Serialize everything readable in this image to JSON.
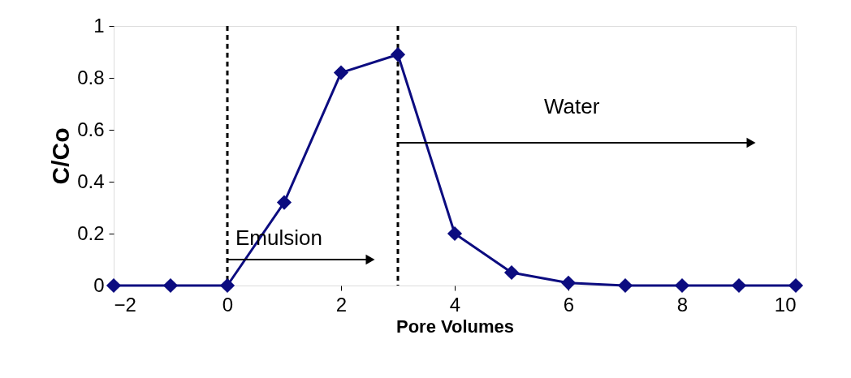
{
  "chart_data": {
    "type": "line",
    "xlabel": "Pore Volumes",
    "ylabel": "C/Co",
    "x": [
      -2,
      -1,
      0,
      1,
      2,
      3,
      4,
      5,
      6,
      7,
      8,
      9,
      10
    ],
    "series": [
      {
        "color": "#0c0c80",
        "values": [
          0,
          0,
          0,
          0.32,
          0.82,
          0.89,
          0.2,
          0.05,
          0.01,
          0,
          0,
          0,
          0
        ]
      }
    ],
    "xlim": [
      -2,
      10
    ],
    "xticks": [
      -2,
      0,
      2,
      4,
      6,
      8,
      10
    ],
    "ylim": [
      0,
      1
    ],
    "yticks": [
      0,
      0.2,
      0.4,
      0.6,
      0.8,
      1
    ],
    "grid": false,
    "marker": "diamond",
    "line_style": "solid",
    "ref_lines": [
      {
        "axis": "x",
        "value": 0,
        "label": null,
        "color": "#000000",
        "line_style": "dashed"
      },
      {
        "axis": "x",
        "value": 3,
        "label": null,
        "color": "#000000",
        "line_style": "dashed"
      }
    ],
    "annotations": [
      "Emulsion",
      "Water"
    ]
  }
}
